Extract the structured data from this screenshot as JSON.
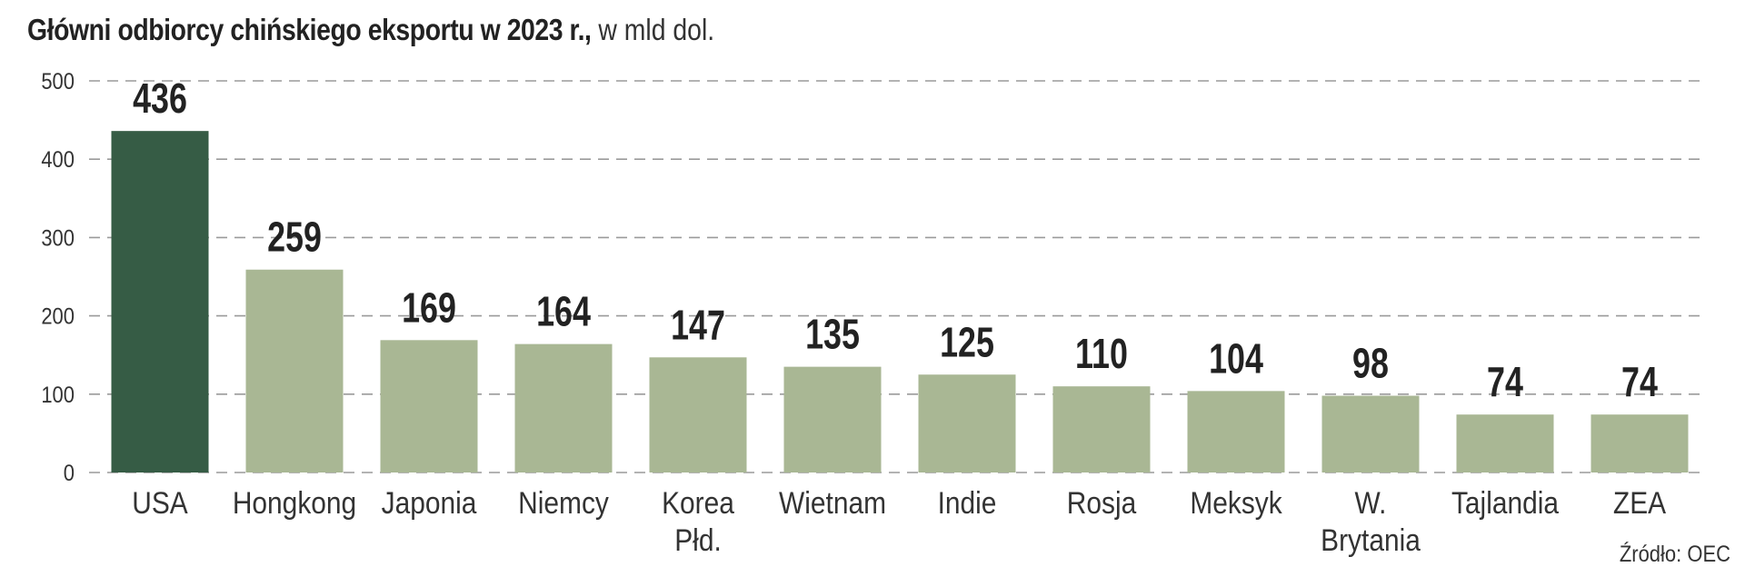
{
  "chart_data": {
    "type": "bar",
    "title": "Główni odbiorcy chińskiego eksportu w 2023 r.,",
    "subtitle": "w mld dol.",
    "categories": [
      [
        "USA"
      ],
      [
        "Hongkong"
      ],
      [
        "Japonia"
      ],
      [
        "Niemcy"
      ],
      [
        "Korea",
        "Płd."
      ],
      [
        "Wietnam"
      ],
      [
        "Indie"
      ],
      [
        "Rosja"
      ],
      [
        "Meksyk"
      ],
      [
        "W.",
        "Brytania"
      ],
      [
        "Tajlandia"
      ],
      [
        "ZEA"
      ]
    ],
    "values": [
      436,
      259,
      169,
      164,
      147,
      135,
      125,
      110,
      104,
      98,
      74,
      74
    ],
    "ylim": [
      0,
      500
    ],
    "yticks": [
      0,
      100,
      200,
      300,
      400,
      500
    ],
    "grid": true,
    "gridStyle": "dashed",
    "colors": {
      "highlight": "#365c45",
      "bar": "#a9b794",
      "grid": "#9a9a9a"
    },
    "highlight_index": 0,
    "source": "Źródło: OEC"
  }
}
